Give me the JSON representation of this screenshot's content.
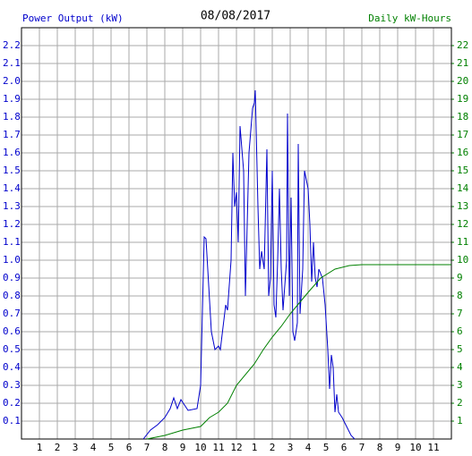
{
  "chart_data": {
    "type": "line",
    "title": "08/08/2017",
    "y_label": "Power Output (kW)",
    "y2_label": "Daily kW-Hours",
    "xlim": [
      0,
      24
    ],
    "xticks": [
      1,
      2,
      3,
      4,
      5,
      6,
      7,
      8,
      9,
      10,
      11,
      12,
      {
        "value": 13,
        "label": "1"
      },
      {
        "value": 14,
        "label": "2"
      },
      {
        "value": 15,
        "label": "3"
      },
      {
        "value": 16,
        "label": "4"
      },
      {
        "value": 17,
        "label": "5"
      },
      {
        "value": 18,
        "label": "6"
      },
      {
        "value": 19,
        "label": "7"
      },
      {
        "value": 20,
        "label": "8"
      },
      {
        "value": 21,
        "label": "9"
      },
      {
        "value": 22,
        "label": "10"
      },
      {
        "value": 23,
        "label": "11"
      }
    ],
    "ylim": [
      0,
      2.3
    ],
    "yticks": [
      0.1,
      0.2,
      0.3,
      0.4,
      0.5,
      0.6,
      0.7,
      0.8,
      0.9,
      {
        "value": 1,
        "label": "1.0"
      },
      1.1,
      1.2,
      1.3,
      1.4,
      1.5,
      1.6,
      1.7,
      1.8,
      1.9,
      {
        "value": 2,
        "label": "2.0"
      },
      2.1,
      2.2
    ],
    "y2lim": [
      0,
      23
    ],
    "y2ticks": [
      1,
      2,
      3,
      4,
      5,
      6,
      7,
      8,
      9,
      10,
      11,
      12,
      13,
      14,
      15,
      16,
      17,
      18,
      19,
      20,
      21,
      22
    ],
    "grid": true,
    "series": [
      {
        "name": "Power Output (kW)",
        "color": "#0000cc",
        "x": [
          6.8,
          7.2,
          7.6,
          8.0,
          8.3,
          8.5,
          8.7,
          8.9,
          9.3,
          9.8,
          10.0,
          10.2,
          10.3,
          10.6,
          10.8,
          11.0,
          11.1,
          11.4,
          11.5,
          11.7,
          11.8,
          11.9,
          12.0,
          12.1,
          12.2,
          12.4,
          12.5,
          12.7,
          12.9,
          13.0,
          13.05,
          13.2,
          13.3,
          13.4,
          13.55,
          13.7,
          13.8,
          13.9,
          14.0,
          14.1,
          14.2,
          14.3,
          14.4,
          14.5,
          14.6,
          14.8,
          14.85,
          14.95,
          15.05,
          15.15,
          15.25,
          15.4,
          15.45,
          15.55,
          15.7,
          15.8,
          15.9,
          16.0,
          16.1,
          16.2,
          16.3,
          16.4,
          16.5,
          16.6,
          16.8,
          16.95,
          17.1,
          17.2,
          17.3,
          17.4,
          17.5,
          17.6,
          17.7,
          17.9,
          18.1,
          18.4,
          18.6
        ],
        "values": [
          0,
          0.05,
          0.08,
          0.12,
          0.17,
          0.23,
          0.17,
          0.22,
          0.16,
          0.17,
          0.3,
          1.13,
          1.12,
          0.6,
          0.5,
          0.52,
          0.5,
          0.75,
          0.72,
          1.0,
          1.6,
          1.3,
          1.38,
          1.1,
          1.75,
          1.5,
          0.8,
          1.6,
          1.85,
          1.88,
          1.95,
          1.3,
          0.95,
          1.05,
          0.95,
          1.62,
          0.8,
          0.9,
          1.5,
          0.75,
          0.68,
          1.0,
          1.4,
          0.95,
          0.72,
          1.0,
          1.82,
          0.8,
          1.35,
          0.6,
          0.55,
          0.65,
          1.65,
          0.7,
          0.95,
          1.5,
          1.45,
          1.4,
          1.2,
          0.88,
          1.1,
          0.9,
          0.85,
          0.95,
          0.9,
          0.75,
          0.5,
          0.28,
          0.47,
          0.4,
          0.15,
          0.25,
          0.15,
          0.12,
          0.08,
          0.02,
          0
        ]
      },
      {
        "name": "Daily kW-Hours",
        "color": "#008000",
        "axis": "y2",
        "x": [
          7.0,
          8.0,
          9.0,
          10.0,
          10.5,
          11.0,
          11.5,
          12.0,
          13.0,
          13.5,
          14.0,
          14.5,
          15.0,
          15.5,
          16.0,
          16.7,
          17.5,
          18.3,
          19.0,
          24.0
        ],
        "values": [
          0,
          0.2,
          0.5,
          0.7,
          1.2,
          1.5,
          2.0,
          3.0,
          4.2,
          5.0,
          5.7,
          6.3,
          7.0,
          7.6,
          8.2,
          9.0,
          9.5,
          9.7,
          9.75,
          9.75
        ]
      }
    ]
  }
}
